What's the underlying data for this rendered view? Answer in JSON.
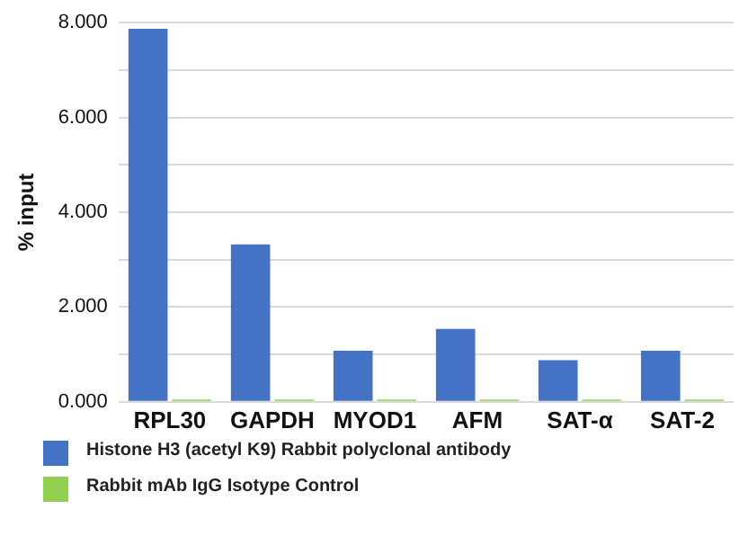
{
  "chart_data": {
    "type": "bar",
    "ylabel": "% input",
    "categories": [
      "RPL30",
      "GAPDH",
      "MYOD1",
      "AFM",
      "SAT-α",
      "SAT-2"
    ],
    "series": [
      {
        "name": "Histone H3 (acetyl K9) Rabbit polyclonal antibody",
        "color": "#4472c4",
        "values": [
          7.87,
          3.32,
          1.08,
          1.54,
          0.88,
          1.08
        ]
      },
      {
        "name": "Rabbit mAb IgG Isotype Control",
        "color": "#92d050",
        "values": [
          0.05,
          0.05,
          0.05,
          0.05,
          0.05,
          0.05
        ]
      }
    ],
    "ylim": [
      0,
      8
    ],
    "yticks": [
      {
        "value": 0,
        "label": "0.000"
      },
      {
        "value": 1,
        "label": null
      },
      {
        "value": 2,
        "label": "2.000"
      },
      {
        "value": 3,
        "label": null
      },
      {
        "value": 4,
        "label": "4.000"
      },
      {
        "value": 5,
        "label": null
      },
      {
        "value": 6,
        "label": "6.000"
      },
      {
        "value": 7,
        "label": null
      },
      {
        "value": 8,
        "label": "8.000"
      }
    ],
    "grid": "y",
    "legend": "bottom"
  }
}
